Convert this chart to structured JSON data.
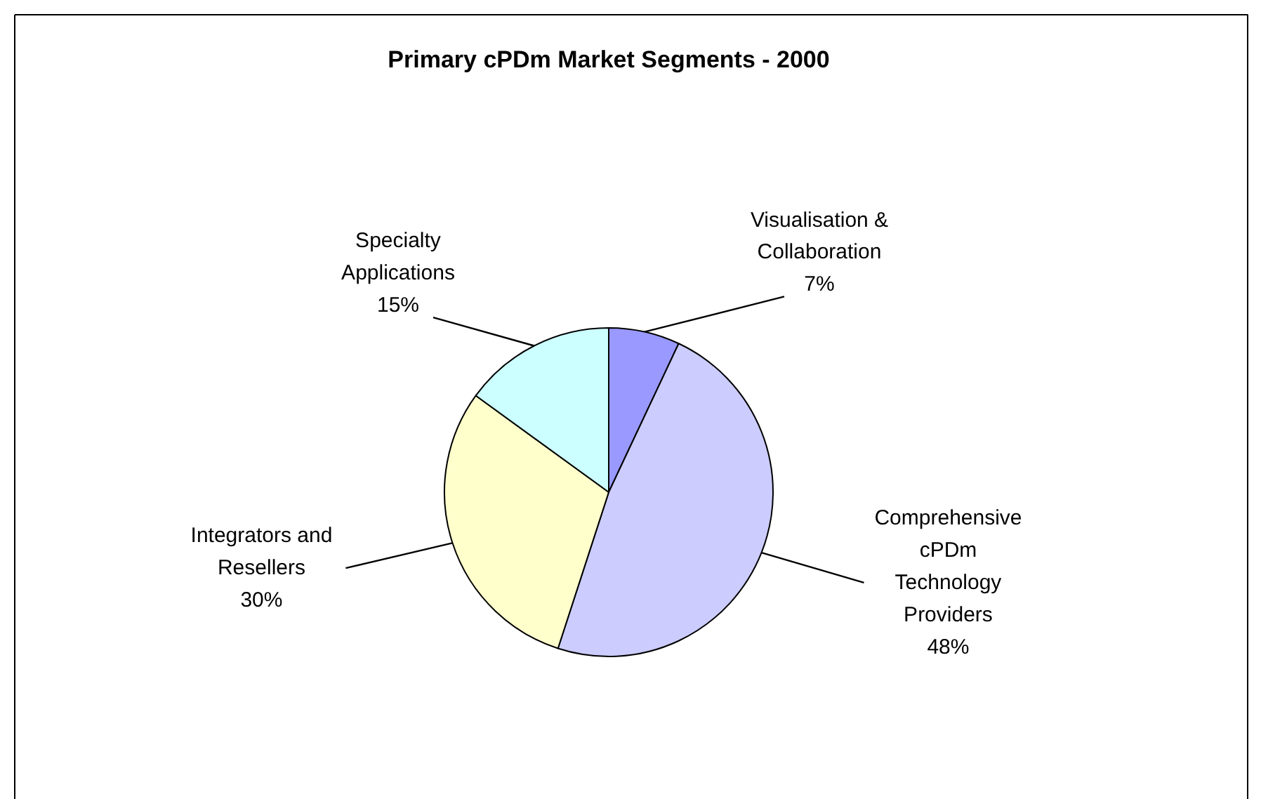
{
  "chart_data": {
    "type": "pie",
    "title": "Primary cPDm Market Segments - 2000",
    "categories": [
      "Visualisation &\nCollaboration",
      "Comprehensive\ncPDm\nTechnology\nProviders",
      "Integrators and\nResellers",
      "Specialty\nApplications"
    ],
    "values": [
      7,
      48,
      30,
      15
    ],
    "colors": [
      "#9999ff",
      "#ccccff",
      "#ffffcc",
      "#ccffff"
    ],
    "value_labels": [
      "7%",
      "48%",
      "30%",
      "15%"
    ]
  }
}
